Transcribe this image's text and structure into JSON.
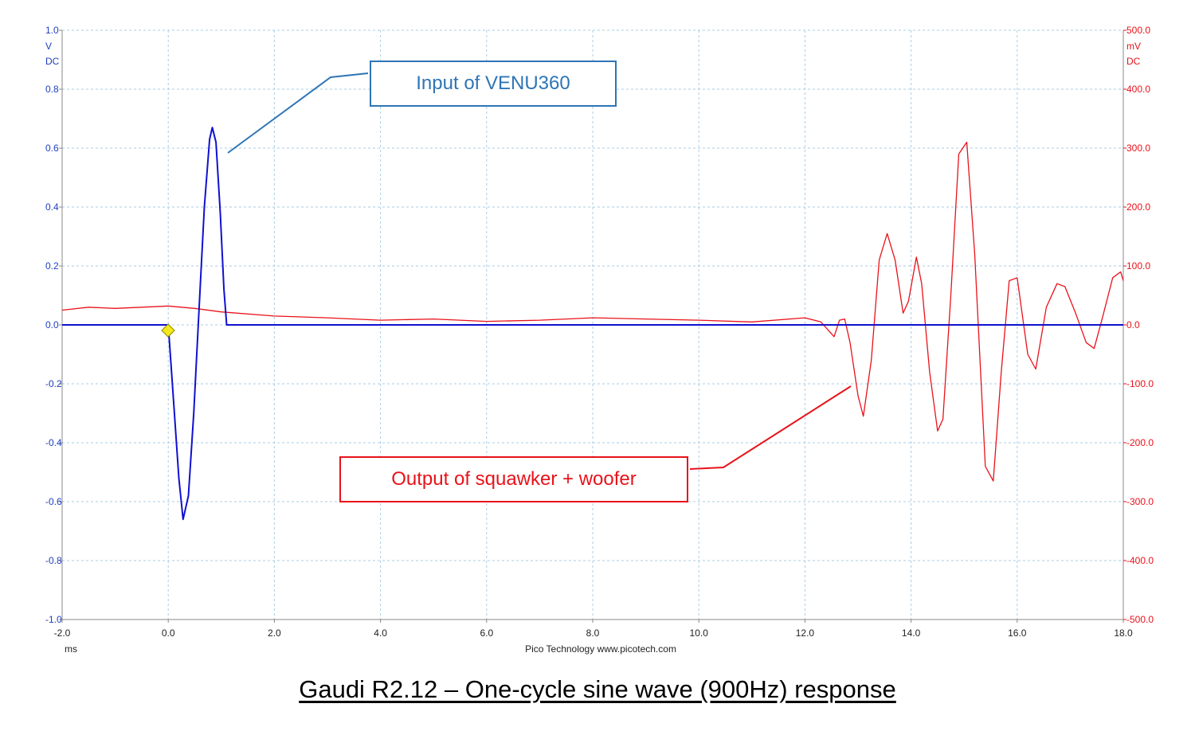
{
  "chart_data": {
    "type": "line",
    "xlabel": "",
    "x_unit": "ms",
    "xlim": [
      -2.0,
      18.0
    ],
    "x_ticks": [
      "-2.0",
      "0.0",
      "2.0",
      "4.0",
      "6.0",
      "8.0",
      "10.0",
      "12.0",
      "14.0",
      "16.0",
      "18.0"
    ],
    "grid": true,
    "grid_style": "dashed",
    "left_axis": {
      "unit": "V",
      "coupling": "DC",
      "ylim": [
        -1.0,
        1.0
      ],
      "ticks": [
        "1.0",
        "0.8",
        "0.6",
        "0.4",
        "0.2",
        "0.0",
        "-0.2",
        "-0.4",
        "-0.6",
        "-0.8",
        "-1.0"
      ],
      "color": "#1f3fbf"
    },
    "right_axis": {
      "unit": "mV",
      "coupling": "DC",
      "ylim": [
        -500.0,
        500.0
      ],
      "ticks": [
        "500.0",
        "400.0",
        "300.0",
        "200.0",
        "100.0",
        "0.0",
        "-100.0",
        "-200.0",
        "-300.0",
        "-400.0",
        "-500.0"
      ],
      "color": "#e8121a"
    },
    "series": [
      {
        "axis": "left",
        "unit": "V",
        "color": "#1010d0",
        "x": [
          -2.0,
          0.0,
          0.1,
          0.2,
          0.28,
          0.38,
          0.48,
          0.58,
          0.68,
          0.78,
          0.83,
          0.9,
          0.98,
          1.05,
          1.1,
          1.15,
          18.0
        ],
        "y": [
          0.0,
          0.0,
          -0.26,
          -0.52,
          -0.66,
          -0.58,
          -0.3,
          0.05,
          0.4,
          0.63,
          0.67,
          0.62,
          0.38,
          0.12,
          0.0,
          0.0,
          0.0
        ]
      },
      {
        "axis": "right",
        "unit": "mV",
        "color": "#e8121a",
        "x": [
          -2.0,
          -1.5,
          -1.0,
          -0.5,
          0.0,
          0.5,
          1.0,
          2.0,
          3.0,
          4.0,
          5.0,
          6.0,
          7.0,
          8.0,
          9.0,
          10.0,
          11.0,
          12.0,
          12.3,
          12.55,
          12.65,
          12.75,
          12.85,
          13.0,
          13.1,
          13.25,
          13.4,
          13.55,
          13.7,
          13.85,
          13.95,
          14.1,
          14.2,
          14.35,
          14.5,
          14.6,
          14.75,
          14.9,
          15.05,
          15.2,
          15.4,
          15.55,
          15.7,
          15.85,
          16.0,
          16.2,
          16.35,
          16.55,
          16.75,
          16.9,
          17.1,
          17.3,
          17.45,
          17.6,
          17.8,
          17.95,
          18.0
        ],
        "y": [
          25,
          30,
          28,
          30,
          32,
          28,
          22,
          15,
          12,
          8,
          10,
          6,
          8,
          12,
          10,
          8,
          5,
          12,
          5,
          -20,
          8,
          10,
          -30,
          -120,
          -155,
          -60,
          110,
          155,
          110,
          20,
          40,
          115,
          70,
          -80,
          -180,
          -160,
          50,
          290,
          310,
          120,
          -240,
          -265,
          -80,
          75,
          80,
          -50,
          -75,
          30,
          70,
          65,
          20,
          -30,
          -40,
          10,
          80,
          90,
          75
        ]
      }
    ]
  },
  "footer": {
    "brand": "Pico Technology   www.picotech.com"
  },
  "annotations": {
    "input": "Input of VENU360",
    "output": "Output of squawker + woofer"
  },
  "caption": "Gaudi R2.12 – One-cycle sine wave (900Hz) response"
}
